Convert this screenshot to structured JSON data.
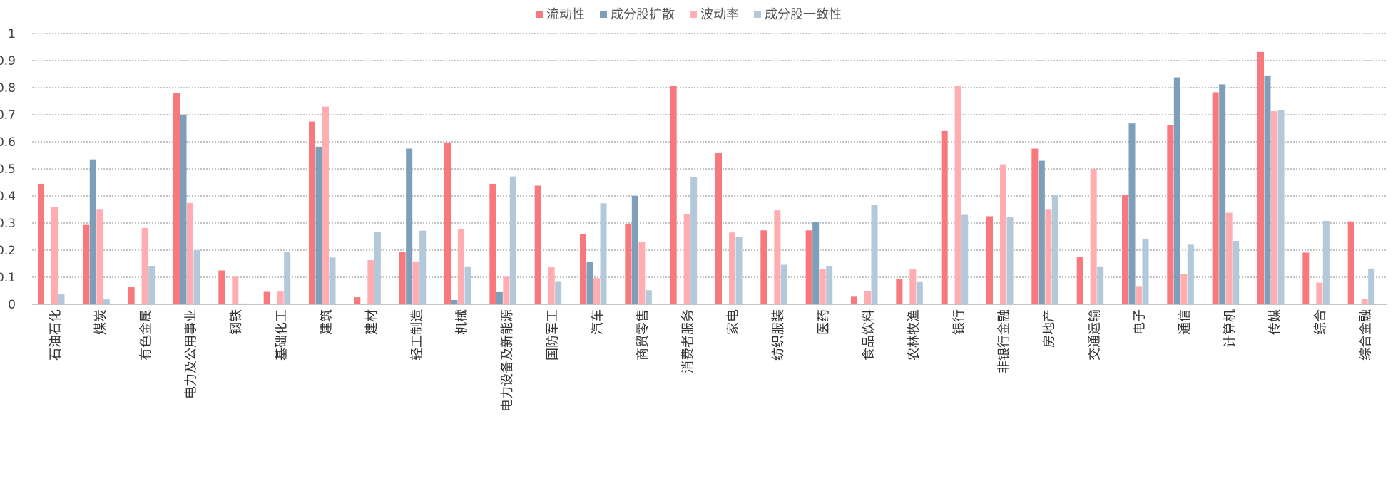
{
  "chart_data": {
    "type": "bar",
    "title": "",
    "xlabel": "",
    "ylabel": "",
    "ylim": [
      0,
      1
    ],
    "yticks": [
      "0",
      "0.1",
      "0.2",
      "0.3",
      "0.4",
      "0.5",
      "0.6",
      "0.7",
      "0.8",
      "0.9",
      "1"
    ],
    "grid": true,
    "legend_position": "top-center",
    "categories": [
      "石油石化",
      "煤炭",
      "有色金属",
      "电力及公用事业",
      "钢铁",
      "基础化工",
      "建筑",
      "建材",
      "轻工制造",
      "机械",
      "电力设备及新能源",
      "国防军工",
      "汽车",
      "商贸零售",
      "消费者服务",
      "家电",
      "纺织服装",
      "医药",
      "食品饮料",
      "农林牧渔",
      "银行",
      "非银行金融",
      "房地产",
      "交通运输",
      "电子",
      "通信",
      "计算机",
      "传媒",
      "综合",
      "综合金融"
    ],
    "series": [
      {
        "name": "流动性",
        "color": "#f7787d",
        "values": [
          0.445,
          0.293,
          0.063,
          0.78,
          0.125,
          0.046,
          0.675,
          0.026,
          0.192,
          0.598,
          0.445,
          0.438,
          0.258,
          0.297,
          0.808,
          0.558,
          0.273,
          0.273,
          0.028,
          0.092,
          0.64,
          0.325,
          0.575,
          0.176,
          0.403,
          0.663,
          0.783,
          0.932,
          0.191,
          0.306
        ]
      },
      {
        "name": "成分股扩散",
        "color": "#7e9fb9",
        "values": [
          0,
          0.535,
          0,
          0.7,
          0,
          0,
          0.582,
          0,
          0.575,
          0.016,
          0.045,
          0,
          0.158,
          0.4,
          0,
          0,
          0,
          0.304,
          0,
          0,
          0,
          0,
          0.53,
          0,
          0.668,
          0.838,
          0.812,
          0.845,
          0,
          0
        ]
      },
      {
        "name": "波动率",
        "color": "#ffadb1",
        "values": [
          0.36,
          0.352,
          0.282,
          0.374,
          0.102,
          0.047,
          0.73,
          0.163,
          0.158,
          0.277,
          0.102,
          0.137,
          0.097,
          0.231,
          0.332,
          0.265,
          0.347,
          0.129,
          0.05,
          0.13,
          0.806,
          0.517,
          0.352,
          0.5,
          0.065,
          0.113,
          0.338,
          0.713,
          0.08,
          0.02
        ]
      },
      {
        "name": "成分股一致性",
        "color": "#b3c8d8",
        "values": [
          0.037,
          0.018,
          0.142,
          0.2,
          0.003,
          0.192,
          0.173,
          0.267,
          0.272,
          0.14,
          0.472,
          0.083,
          0.373,
          0.052,
          0.47,
          0.25,
          0.146,
          0.142,
          0.368,
          0.082,
          0.33,
          0.323,
          0.403,
          0.14,
          0.24,
          0.22,
          0.234,
          0.717,
          0.308,
          0.132
        ]
      }
    ]
  }
}
